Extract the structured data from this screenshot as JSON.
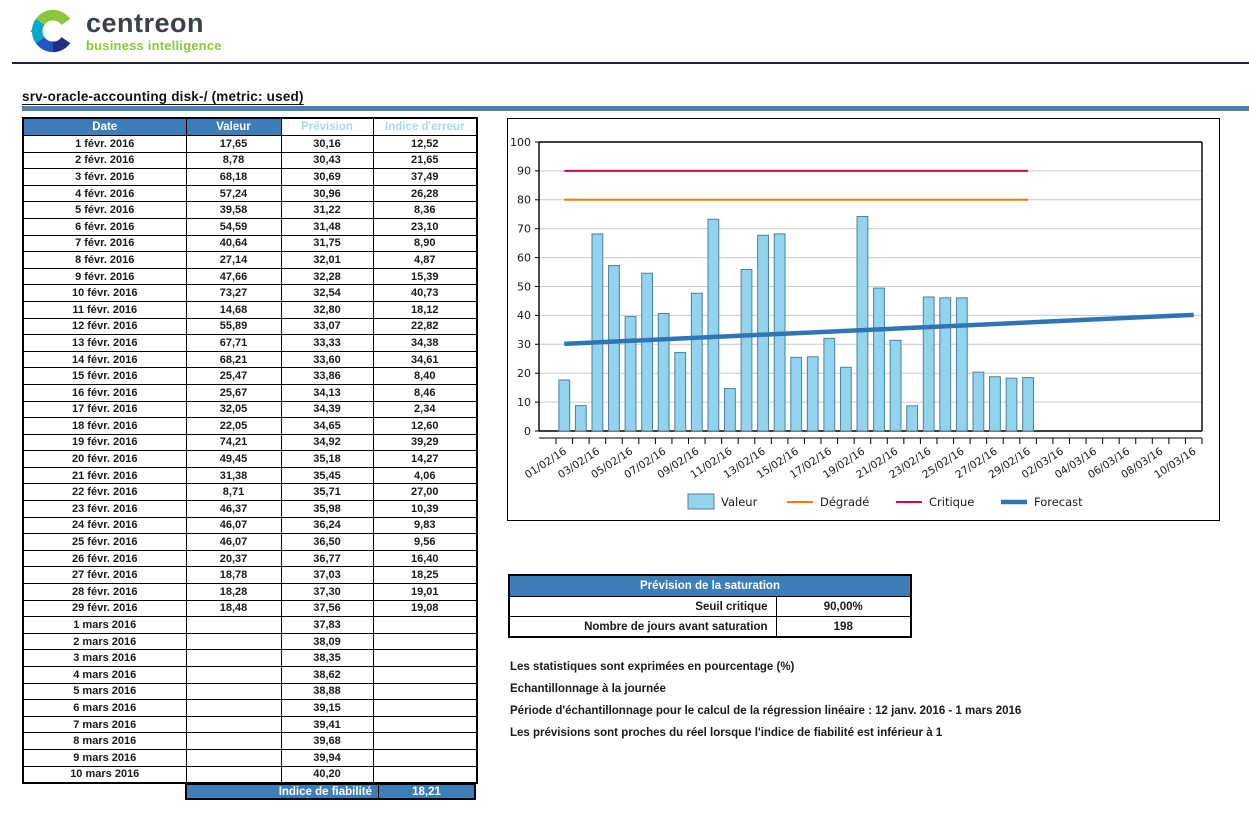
{
  "header": {
    "brand": "centreon",
    "brand_sub": "business intelligence"
  },
  "report": {
    "title": "srv-oracle-accounting  disk-/  (metric: used)"
  },
  "table": {
    "headers": [
      "Date",
      "Valeur",
      "Prévision",
      "Indice d'erreur"
    ],
    "rows": [
      [
        "1 févr. 2016",
        "17,65",
        "30,16",
        "12,52"
      ],
      [
        "2 févr. 2016",
        "8,78",
        "30,43",
        "21,65"
      ],
      [
        "3 févr. 2016",
        "68,18",
        "30,69",
        "37,49"
      ],
      [
        "4 févr. 2016",
        "57,24",
        "30,96",
        "26,28"
      ],
      [
        "5 févr. 2016",
        "39,58",
        "31,22",
        "8,36"
      ],
      [
        "6 févr. 2016",
        "54,59",
        "31,48",
        "23,10"
      ],
      [
        "7 févr. 2016",
        "40,64",
        "31,75",
        "8,90"
      ],
      [
        "8 févr. 2016",
        "27,14",
        "32,01",
        "4,87"
      ],
      [
        "9 févr. 2016",
        "47,66",
        "32,28",
        "15,39"
      ],
      [
        "10 févr. 2016",
        "73,27",
        "32,54",
        "40,73"
      ],
      [
        "11 févr. 2016",
        "14,68",
        "32,80",
        "18,12"
      ],
      [
        "12 févr. 2016",
        "55,89",
        "33,07",
        "22,82"
      ],
      [
        "13 févr. 2016",
        "67,71",
        "33,33",
        "34,38"
      ],
      [
        "14 févr. 2016",
        "68,21",
        "33,60",
        "34,61"
      ],
      [
        "15 févr. 2016",
        "25,47",
        "33,86",
        "8,40"
      ],
      [
        "16 févr. 2016",
        "25,67",
        "34,13",
        "8,46"
      ],
      [
        "17 févr. 2016",
        "32,05",
        "34,39",
        "2,34"
      ],
      [
        "18 févr. 2016",
        "22,05",
        "34,65",
        "12,60"
      ],
      [
        "19 févr. 2016",
        "74,21",
        "34,92",
        "39,29"
      ],
      [
        "20 févr. 2016",
        "49,45",
        "35,18",
        "14,27"
      ],
      [
        "21 févr. 2016",
        "31,38",
        "35,45",
        "4,06"
      ],
      [
        "22 févr. 2016",
        "8,71",
        "35,71",
        "27,00"
      ],
      [
        "23 févr. 2016",
        "46,37",
        "35,98",
        "10,39"
      ],
      [
        "24 févr. 2016",
        "46,07",
        "36,24",
        "9,83"
      ],
      [
        "25 févr. 2016",
        "46,07",
        "36,50",
        "9,56"
      ],
      [
        "26 févr. 2016",
        "20,37",
        "36,77",
        "16,40"
      ],
      [
        "27 févr. 2016",
        "18,78",
        "37,03",
        "18,25"
      ],
      [
        "28 févr. 2016",
        "18,28",
        "37,30",
        "19,01"
      ],
      [
        "29 févr. 2016",
        "18,48",
        "37,56",
        "19,08"
      ],
      [
        "1 mars 2016",
        "",
        "37,83",
        ""
      ],
      [
        "2 mars 2016",
        "",
        "38,09",
        ""
      ],
      [
        "3 mars 2016",
        "",
        "38,35",
        ""
      ],
      [
        "4 mars 2016",
        "",
        "38,62",
        ""
      ],
      [
        "5 mars 2016",
        "",
        "38,88",
        ""
      ],
      [
        "6 mars 2016",
        "",
        "39,15",
        ""
      ],
      [
        "7 mars 2016",
        "",
        "39,41",
        ""
      ],
      [
        "8 mars 2016",
        "",
        "39,68",
        ""
      ],
      [
        "9 mars 2016",
        "",
        "39,94",
        ""
      ],
      [
        "10 mars 2016",
        "",
        "40,20",
        ""
      ]
    ],
    "footer": {
      "label": "Indice de fiabilité",
      "value": "18,21"
    }
  },
  "saturation": {
    "title": "Prévision de la saturation",
    "rows": [
      {
        "label": "Seuil critique",
        "value": "90,00%"
      },
      {
        "label": "Nombre de jours avant saturation",
        "value": "198"
      }
    ]
  },
  "notes": [
    "Les statistiques sont exprimées en pourcentage (%)",
    "Echantillonnage à la journée",
    "Période d'échantillonnage pour le calcul de la régression linéaire : 12 janv. 2016 - 1 mars 2016",
    "Les prévisions sont proches du réel lorsque l'indice de fiabilité est inférieur à 1"
  ],
  "chart_data": {
    "type": "bar",
    "title": "",
    "n_days": 39,
    "ylim": [
      0,
      100
    ],
    "y_tick_step": 10,
    "grid": true,
    "legend_position": "bottom",
    "x_tick_labels": [
      "01/02/16",
      "03/02/16",
      "05/02/16",
      "07/02/16",
      "09/02/16",
      "11/02/16",
      "13/02/16",
      "15/02/16",
      "17/02/16",
      "19/02/16",
      "21/02/16",
      "23/02/16",
      "25/02/16",
      "27/02/16",
      "29/02/16",
      "02/03/16",
      "04/03/16",
      "06/03/16",
      "08/03/16",
      "10/03/16"
    ],
    "series": [
      {
        "name": "Valeur",
        "kind": "bar",
        "color": "#92d4ee",
        "border_color": "#4d7f9d",
        "values": [
          17.65,
          8.78,
          68.18,
          57.24,
          39.58,
          54.59,
          40.64,
          27.14,
          47.66,
          73.27,
          14.68,
          55.89,
          67.71,
          68.21,
          25.47,
          25.67,
          32.05,
          22.05,
          74.21,
          49.45,
          31.38,
          8.71,
          46.37,
          46.07,
          46.07,
          20.37,
          18.78,
          18.28,
          18.48
        ]
      },
      {
        "name": "Dégradé",
        "kind": "threshold",
        "color": "#f57b00",
        "value": 80,
        "span_days": [
          0,
          28
        ]
      },
      {
        "name": "Critique",
        "kind": "threshold",
        "color": "#d10a41",
        "value": 90,
        "span_days": [
          0,
          28
        ]
      },
      {
        "name": "Forecast",
        "kind": "line",
        "color": "#2e75b6",
        "start_value": 30.16,
        "end_value": 40.2,
        "span_days": [
          0,
          38
        ]
      }
    ],
    "legend": [
      "Valeur",
      "Dégradé",
      "Critique",
      "Forecast"
    ]
  },
  "colors": {
    "header_blue": "#3d7eb8",
    "light_blue_header_text": "#a9d8f2",
    "title_bar_blue": "#4d82ad",
    "bar_fill": "#92d4ee",
    "bar_border": "#4d7f9d",
    "degraded_orange": "#f57b00",
    "critical_red": "#d10a41",
    "forecast_blue": "#2e75b6",
    "grid_gray": "#c9c9c9",
    "brand_dark": "#36424e",
    "brand_green": "#8cc63f"
  }
}
